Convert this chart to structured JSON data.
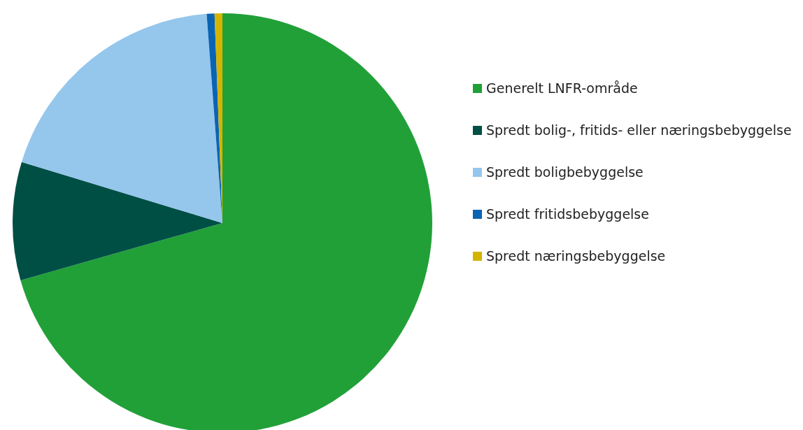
{
  "chart_data": {
    "type": "pie",
    "categories": [
      "Generelt LNFR-område",
      "Spredt bolig-, fritids- eller næringsbebyggelse",
      "Spredt boligbebyggelse",
      "Spredt fritidsbebyggelse",
      "Spredt næringsbebyggelse"
    ],
    "values": [
      70.6,
      9.1,
      19.1,
      0.6,
      0.6
    ],
    "colors": [
      "#21a038",
      "#004f45",
      "#95c6ec",
      "#0a64b4",
      "#d4b400"
    ],
    "legend": "right"
  }
}
